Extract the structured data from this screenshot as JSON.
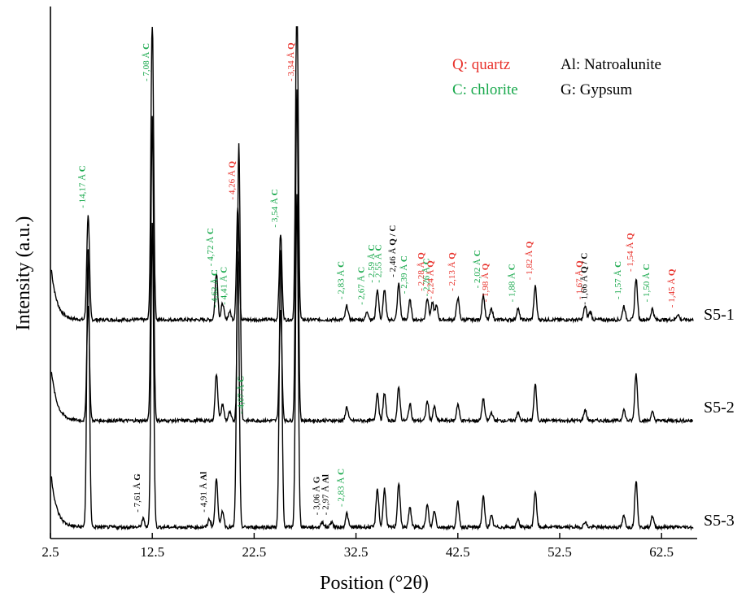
{
  "chart_data": {
    "type": "line",
    "xlabel": "Position (°2θ)",
    "ylabel": "Intensity (a.u.)",
    "xlim": [
      2.5,
      66.0
    ],
    "x_ticks": [
      "2.5",
      "12.5",
      "22.5",
      "32.5",
      "42.5",
      "52.5",
      "62.5"
    ],
    "y_ticks": "none",
    "grid": false,
    "legend": {
      "placement": "top-right",
      "entries": [
        {
          "code": "Q",
          "text": "Q: quartz",
          "color": "#e8302a"
        },
        {
          "code": "C",
          "text": "C: chlorite",
          "color": "#17a84b"
        },
        {
          "code": "Al",
          "text": "Al: Natroalunite",
          "color": "#000000"
        },
        {
          "code": "G",
          "text": "G: Gypsum",
          "color": "#000000"
        }
      ]
    },
    "colors": {
      "Q": "#e8302a",
      "C": "#17a84b",
      "Al": "#000000",
      "G": "#000000",
      "Q/C": "#000000"
    },
    "series": [
      {
        "name": "S5-1",
        "peaks": [
          {
            "x": 6.2,
            "h": 0.38
          },
          {
            "x": 12.5,
            "h": 1.1
          },
          {
            "x": 18.8,
            "h": 0.17
          },
          {
            "x": 19.4,
            "h": 0.06
          },
          {
            "x": 20.1,
            "h": 0.03
          },
          {
            "x": 20.9,
            "h": 0.41
          },
          {
            "x": 25.1,
            "h": 0.31
          },
          {
            "x": 26.7,
            "h": 1.2
          },
          {
            "x": 31.6,
            "h": 0.05
          },
          {
            "x": 33.6,
            "h": 0.03
          },
          {
            "x": 34.6,
            "h": 0.11
          },
          {
            "x": 35.3,
            "h": 0.11
          },
          {
            "x": 36.7,
            "h": 0.13
          },
          {
            "x": 37.8,
            "h": 0.07
          },
          {
            "x": 39.5,
            "h": 0.08
          },
          {
            "x": 40.0,
            "h": 0.06
          },
          {
            "x": 40.4,
            "h": 0.05
          },
          {
            "x": 42.5,
            "h": 0.08
          },
          {
            "x": 45.0,
            "h": 0.09
          },
          {
            "x": 45.8,
            "h": 0.04
          },
          {
            "x": 48.4,
            "h": 0.04
          },
          {
            "x": 50.1,
            "h": 0.12
          },
          {
            "x": 55.0,
            "h": 0.05
          },
          {
            "x": 55.5,
            "h": 0.03
          },
          {
            "x": 58.8,
            "h": 0.05
          },
          {
            "x": 60.0,
            "h": 0.15
          },
          {
            "x": 61.6,
            "h": 0.04
          },
          {
            "x": 64.1,
            "h": 0.02
          }
        ]
      },
      {
        "name": "S5-2",
        "peaks": [
          {
            "x": 6.2,
            "h": 0.42
          },
          {
            "x": 12.5,
            "h": 1.1
          },
          {
            "x": 18.8,
            "h": 0.17
          },
          {
            "x": 19.4,
            "h": 0.06
          },
          {
            "x": 20.1,
            "h": 0.03
          },
          {
            "x": 21.0,
            "h": 1.0
          },
          {
            "x": 25.1,
            "h": 0.4
          },
          {
            "x": 26.7,
            "h": 1.2
          },
          {
            "x": 31.6,
            "h": 0.05
          },
          {
            "x": 34.6,
            "h": 0.1
          },
          {
            "x": 35.3,
            "h": 0.1
          },
          {
            "x": 36.7,
            "h": 0.12
          },
          {
            "x": 37.8,
            "h": 0.06
          },
          {
            "x": 39.5,
            "h": 0.07
          },
          {
            "x": 40.2,
            "h": 0.05
          },
          {
            "x": 42.5,
            "h": 0.06
          },
          {
            "x": 45.0,
            "h": 0.08
          },
          {
            "x": 45.8,
            "h": 0.03
          },
          {
            "x": 48.4,
            "h": 0.03
          },
          {
            "x": 50.1,
            "h": 0.13
          },
          {
            "x": 55.0,
            "h": 0.04
          },
          {
            "x": 58.8,
            "h": 0.04
          },
          {
            "x": 60.0,
            "h": 0.17
          },
          {
            "x": 61.6,
            "h": 0.03
          }
        ]
      },
      {
        "name": "S5-3",
        "peaks": [
          {
            "x": 6.2,
            "h": 1.0
          },
          {
            "x": 11.6,
            "h": 0.03
          },
          {
            "x": 12.5,
            "h": 1.1
          },
          {
            "x": 18.1,
            "h": 0.03
          },
          {
            "x": 18.8,
            "h": 0.18
          },
          {
            "x": 19.4,
            "h": 0.06
          },
          {
            "x": 20.9,
            "h": 1.0
          },
          {
            "x": 25.1,
            "h": 1.0
          },
          {
            "x": 26.7,
            "h": 1.2
          },
          {
            "x": 29.2,
            "h": 0.02
          },
          {
            "x": 30.1,
            "h": 0.02
          },
          {
            "x": 31.6,
            "h": 0.05
          },
          {
            "x": 34.6,
            "h": 0.14
          },
          {
            "x": 35.3,
            "h": 0.14
          },
          {
            "x": 36.7,
            "h": 0.16
          },
          {
            "x": 37.8,
            "h": 0.07
          },
          {
            "x": 39.5,
            "h": 0.08
          },
          {
            "x": 40.2,
            "h": 0.06
          },
          {
            "x": 42.5,
            "h": 0.09
          },
          {
            "x": 45.0,
            "h": 0.11
          },
          {
            "x": 45.8,
            "h": 0.04
          },
          {
            "x": 48.4,
            "h": 0.03
          },
          {
            "x": 50.1,
            "h": 0.13
          },
          {
            "x": 55.0,
            "h": 0.02
          },
          {
            "x": 58.8,
            "h": 0.04
          },
          {
            "x": 60.0,
            "h": 0.17
          },
          {
            "x": 61.6,
            "h": 0.04
          }
        ]
      }
    ],
    "annotations": [
      {
        "d": "14,17 Å",
        "code": "C",
        "x": 6.2,
        "series": "S5-1"
      },
      {
        "d": "7,08 Å",
        "code": "C",
        "x": 12.5,
        "series": "S5-1"
      },
      {
        "d": "4,72 Å",
        "code": "C",
        "x": 18.8,
        "series": "S5-1"
      },
      {
        "d": "4,62 Å",
        "code": "C",
        "x": 19.2,
        "series": "S5-1"
      },
      {
        "d": "4,41 Å",
        "code": "C",
        "x": 20.1,
        "series": "S5-1"
      },
      {
        "d": "4,26 Å",
        "code": "Q",
        "x": 20.9,
        "series": "S5-1"
      },
      {
        "d": "3,54 Å",
        "code": "C",
        "x": 25.1,
        "series": "S5-1"
      },
      {
        "d": "3,34 Å",
        "code": "Q",
        "x": 26.7,
        "series": "S5-1"
      },
      {
        "d": "2,83 Å",
        "code": "C",
        "x": 31.6,
        "series": "S5-1"
      },
      {
        "d": "2,67 Å",
        "code": "C",
        "x": 33.6,
        "series": "S5-1"
      },
      {
        "d": "2,59 Å",
        "code": "C",
        "x": 34.6,
        "series": "S5-1"
      },
      {
        "d": "2,55 Å",
        "code": "C",
        "x": 35.3,
        "series": "S5-1"
      },
      {
        "d": "2,46 Å",
        "code": "Q / C",
        "x": 36.7,
        "series": "S5-1"
      },
      {
        "d": "2,39 Å",
        "code": "C",
        "x": 37.8,
        "series": "S5-1"
      },
      {
        "d": "2,28 Å",
        "code": "Q",
        "x": 39.5,
        "series": "S5-1"
      },
      {
        "d": "2,26 Å",
        "code": "C",
        "x": 40.0,
        "series": "S5-1"
      },
      {
        "d": "2,24 Å",
        "code": "Q",
        "x": 40.4,
        "series": "S5-1"
      },
      {
        "d": "2,13 Å",
        "code": "Q",
        "x": 42.5,
        "series": "S5-1"
      },
      {
        "d": "2,02 Å",
        "code": "C",
        "x": 45.0,
        "series": "S5-1"
      },
      {
        "d": "1,98 Å",
        "code": "Q",
        "x": 45.8,
        "series": "S5-1"
      },
      {
        "d": "1,88 Å",
        "code": "C",
        "x": 48.4,
        "series": "S5-1"
      },
      {
        "d": "1,82 Å",
        "code": "Q",
        "x": 50.1,
        "series": "S5-1"
      },
      {
        "d": "1,67 Å",
        "code": "Q",
        "x": 55.0,
        "series": "S5-1"
      },
      {
        "d": "1,66 Å",
        "code": "Q / C",
        "x": 55.5,
        "series": "S5-1"
      },
      {
        "d": "1,57 Å",
        "code": "C",
        "x": 58.8,
        "series": "S5-1"
      },
      {
        "d": "1,54 Å",
        "code": "Q",
        "x": 60.0,
        "series": "S5-1"
      },
      {
        "d": "1,50 Å",
        "code": "C",
        "x": 61.6,
        "series": "S5-1"
      },
      {
        "d": "1,45 Å",
        "code": "Q",
        "x": 64.1,
        "series": "S5-1"
      },
      {
        "d": "4,07 Å",
        "code": "C",
        "x": 21.8,
        "series": "S5-2"
      },
      {
        "d": "7,61 Å",
        "code": "G",
        "x": 11.6,
        "series": "S5-3"
      },
      {
        "d": "4,91 Å",
        "code": "Al",
        "x": 18.1,
        "series": "S5-3"
      },
      {
        "d": "3,06 Å",
        "code": "G",
        "x": 29.2,
        "series": "S5-3"
      },
      {
        "d": "2,97 Å",
        "code": "Al",
        "x": 30.1,
        "series": "S5-3"
      },
      {
        "d": "2,83 Å",
        "code": "C",
        "x": 31.6,
        "series": "S5-3"
      }
    ]
  }
}
